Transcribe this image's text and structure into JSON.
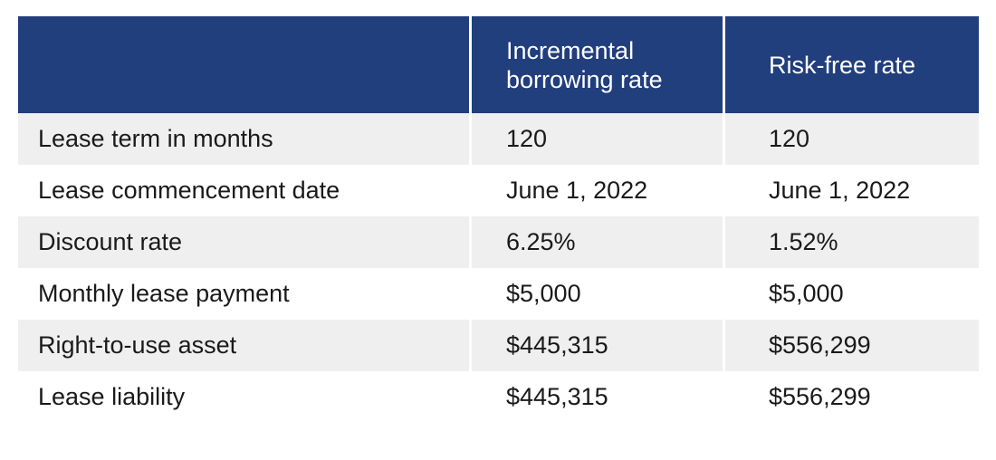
{
  "table": {
    "header": [
      "Incremental borrowing rate",
      "Risk-free rate"
    ],
    "rows": [
      [
        "Lease term in months",
        "120",
        "120"
      ],
      [
        "Lease commencement date",
        "June 1, 2022",
        "June 1, 2022"
      ],
      [
        "Discount rate",
        "6.25%",
        "1.52%"
      ],
      [
        "Monthly lease payment",
        "$5,000",
        "$5,000"
      ],
      [
        "Right-to-use asset",
        "$445,315",
        "$556,299"
      ],
      [
        "Lease liability",
        "$445,315",
        "$556,299"
      ]
    ]
  }
}
